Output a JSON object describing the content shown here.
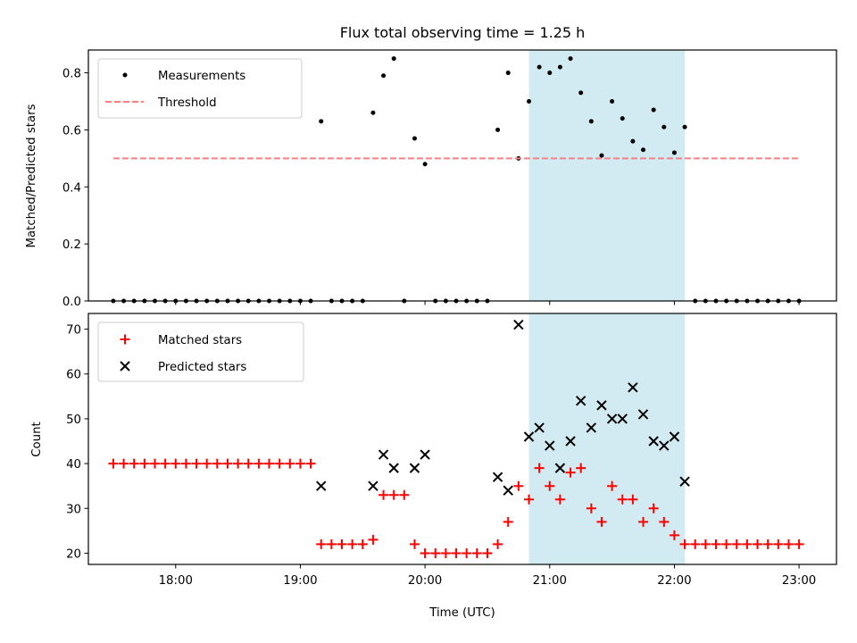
{
  "title": "Flux total observing time = 1.25 h",
  "colors": {
    "measurement": "#000000",
    "threshold": "#ff7f7f",
    "matched": "#ff0000",
    "predicted": "#000000",
    "highlight": "#add8e6"
  },
  "chart_data": [
    {
      "type": "scatter",
      "panel": "top",
      "ylabel": "Matched/Predicted stars",
      "xlabel": "",
      "xlim": [
        "17:18",
        "23:18"
      ],
      "ylim": [
        0,
        0.88
      ],
      "yticks": [
        0.0,
        0.2,
        0.4,
        0.6,
        0.8
      ],
      "ytick_labels": [
        "0.0",
        "0.2",
        "0.4",
        "0.6",
        "0.8"
      ],
      "highlight_span": [
        "20:50",
        "22:05"
      ],
      "legend": {
        "position": "upper left",
        "measurements_label": "Measurements",
        "threshold_label": "Threshold"
      },
      "threshold": {
        "value": 0.5,
        "x_range": [
          "17:30",
          "23:00"
        ]
      },
      "series": [
        {
          "name": "Measurements",
          "marker": "dot",
          "points": [
            [
              "17:30",
              0
            ],
            [
              "17:35",
              0
            ],
            [
              "17:40",
              0
            ],
            [
              "17:45",
              0
            ],
            [
              "17:50",
              0
            ],
            [
              "17:55",
              0
            ],
            [
              "18:00",
              0
            ],
            [
              "18:05",
              0
            ],
            [
              "18:10",
              0
            ],
            [
              "18:15",
              0
            ],
            [
              "18:20",
              0
            ],
            [
              "18:25",
              0
            ],
            [
              "18:30",
              0
            ],
            [
              "18:35",
              0
            ],
            [
              "18:40",
              0
            ],
            [
              "18:45",
              0
            ],
            [
              "18:50",
              0
            ],
            [
              "18:55",
              0
            ],
            [
              "19:00",
              0
            ],
            [
              "19:05",
              0
            ],
            [
              "19:10",
              0.63
            ],
            [
              "19:15",
              0
            ],
            [
              "19:20",
              0
            ],
            [
              "19:25",
              0
            ],
            [
              "19:30",
              0
            ],
            [
              "19:35",
              0.66
            ],
            [
              "19:40",
              0.79
            ],
            [
              "19:45",
              0.85
            ],
            [
              "19:50",
              0
            ],
            [
              "19:55",
              0.57
            ],
            [
              "20:00",
              0.48
            ],
            [
              "20:05",
              0
            ],
            [
              "20:10",
              0
            ],
            [
              "20:15",
              0
            ],
            [
              "20:20",
              0
            ],
            [
              "20:25",
              0
            ],
            [
              "20:30",
              0
            ],
            [
              "20:35",
              0.6
            ],
            [
              "20:40",
              0.8
            ],
            [
              "20:45",
              0.5
            ],
            [
              "20:50",
              0.7
            ],
            [
              "20:55",
              0.82
            ],
            [
              "21:00",
              0.8
            ],
            [
              "21:05",
              0.82
            ],
            [
              "21:10",
              0.85
            ],
            [
              "21:15",
              0.73
            ],
            [
              "21:20",
              0.63
            ],
            [
              "21:25",
              0.51
            ],
            [
              "21:30",
              0.7
            ],
            [
              "21:35",
              0.64
            ],
            [
              "21:40",
              0.56
            ],
            [
              "21:45",
              0.53
            ],
            [
              "21:50",
              0.67
            ],
            [
              "21:55",
              0.61
            ],
            [
              "22:00",
              0.52
            ],
            [
              "22:05",
              0.61
            ],
            [
              "22:10",
              0
            ],
            [
              "22:15",
              0
            ],
            [
              "22:20",
              0
            ],
            [
              "22:25",
              0
            ],
            [
              "22:30",
              0
            ],
            [
              "22:35",
              0
            ],
            [
              "22:40",
              0
            ],
            [
              "22:45",
              0
            ],
            [
              "22:50",
              0
            ],
            [
              "22:55",
              0
            ],
            [
              "23:00",
              0
            ]
          ]
        }
      ]
    },
    {
      "type": "scatter",
      "panel": "bottom",
      "xlabel": "Time (UTC)",
      "ylabel": "Count",
      "xlim": [
        "17:18",
        "23:18"
      ],
      "ylim": [
        17.5,
        73.5
      ],
      "yticks": [
        20,
        30,
        40,
        50,
        60,
        70
      ],
      "ytick_labels": [
        "20",
        "30",
        "40",
        "50",
        "60",
        "70"
      ],
      "xticks": [
        "18:00",
        "19:00",
        "20:00",
        "21:00",
        "22:00",
        "23:00"
      ],
      "xtick_labels": [
        "18:00",
        "19:00",
        "20:00",
        "21:00",
        "22:00",
        "23:00"
      ],
      "highlight_span": [
        "20:50",
        "22:05"
      ],
      "legend": {
        "position": "upper left",
        "matched_label": "Matched stars",
        "predicted_label": "Predicted stars"
      },
      "series": [
        {
          "name": "Matched stars",
          "marker": "plus",
          "points": [
            [
              "17:30",
              40
            ],
            [
              "17:35",
              40
            ],
            [
              "17:40",
              40
            ],
            [
              "17:45",
              40
            ],
            [
              "17:50",
              40
            ],
            [
              "17:55",
              40
            ],
            [
              "18:00",
              40
            ],
            [
              "18:05",
              40
            ],
            [
              "18:10",
              40
            ],
            [
              "18:15",
              40
            ],
            [
              "18:20",
              40
            ],
            [
              "18:25",
              40
            ],
            [
              "18:30",
              40
            ],
            [
              "18:35",
              40
            ],
            [
              "18:40",
              40
            ],
            [
              "18:45",
              40
            ],
            [
              "18:50",
              40
            ],
            [
              "18:55",
              40
            ],
            [
              "19:00",
              40
            ],
            [
              "19:05",
              40
            ],
            [
              "19:10",
              22
            ],
            [
              "19:15",
              22
            ],
            [
              "19:20",
              22
            ],
            [
              "19:25",
              22
            ],
            [
              "19:30",
              22
            ],
            [
              "19:35",
              23
            ],
            [
              "19:40",
              33
            ],
            [
              "19:45",
              33
            ],
            [
              "19:50",
              33
            ],
            [
              "19:55",
              22
            ],
            [
              "20:00",
              20
            ],
            [
              "20:05",
              20
            ],
            [
              "20:10",
              20
            ],
            [
              "20:15",
              20
            ],
            [
              "20:20",
              20
            ],
            [
              "20:25",
              20
            ],
            [
              "20:30",
              20
            ],
            [
              "20:35",
              22
            ],
            [
              "20:40",
              27
            ],
            [
              "20:45",
              35
            ],
            [
              "20:50",
              32
            ],
            [
              "20:55",
              39
            ],
            [
              "21:00",
              35
            ],
            [
              "21:05",
              32
            ],
            [
              "21:10",
              38
            ],
            [
              "21:15",
              39
            ],
            [
              "21:20",
              30
            ],
            [
              "21:25",
              27
            ],
            [
              "21:30",
              35
            ],
            [
              "21:35",
              32
            ],
            [
              "21:40",
              32
            ],
            [
              "21:45",
              27
            ],
            [
              "21:50",
              30
            ],
            [
              "21:55",
              27
            ],
            [
              "22:00",
              24
            ],
            [
              "22:05",
              22
            ],
            [
              "22:10",
              22
            ],
            [
              "22:15",
              22
            ],
            [
              "22:20",
              22
            ],
            [
              "22:25",
              22
            ],
            [
              "22:30",
              22
            ],
            [
              "22:35",
              22
            ],
            [
              "22:40",
              22
            ],
            [
              "22:45",
              22
            ],
            [
              "22:50",
              22
            ],
            [
              "22:55",
              22
            ],
            [
              "23:00",
              22
            ]
          ]
        },
        {
          "name": "Predicted stars",
          "marker": "x",
          "points": [
            [
              "19:10",
              35
            ],
            [
              "19:35",
              35
            ],
            [
              "19:40",
              42
            ],
            [
              "19:45",
              39
            ],
            [
              "19:55",
              39
            ],
            [
              "20:00",
              42
            ],
            [
              "20:35",
              37
            ],
            [
              "20:40",
              34
            ],
            [
              "20:45",
              71
            ],
            [
              "20:50",
              46
            ],
            [
              "20:55",
              48
            ],
            [
              "21:00",
              44
            ],
            [
              "21:05",
              39
            ],
            [
              "21:10",
              45
            ],
            [
              "21:15",
              54
            ],
            [
              "21:20",
              48
            ],
            [
              "21:25",
              53
            ],
            [
              "21:30",
              50
            ],
            [
              "21:35",
              50
            ],
            [
              "21:40",
              57
            ],
            [
              "21:45",
              51
            ],
            [
              "21:50",
              45
            ],
            [
              "21:55",
              44
            ],
            [
              "22:00",
              46
            ],
            [
              "22:05",
              36
            ]
          ]
        }
      ]
    }
  ]
}
